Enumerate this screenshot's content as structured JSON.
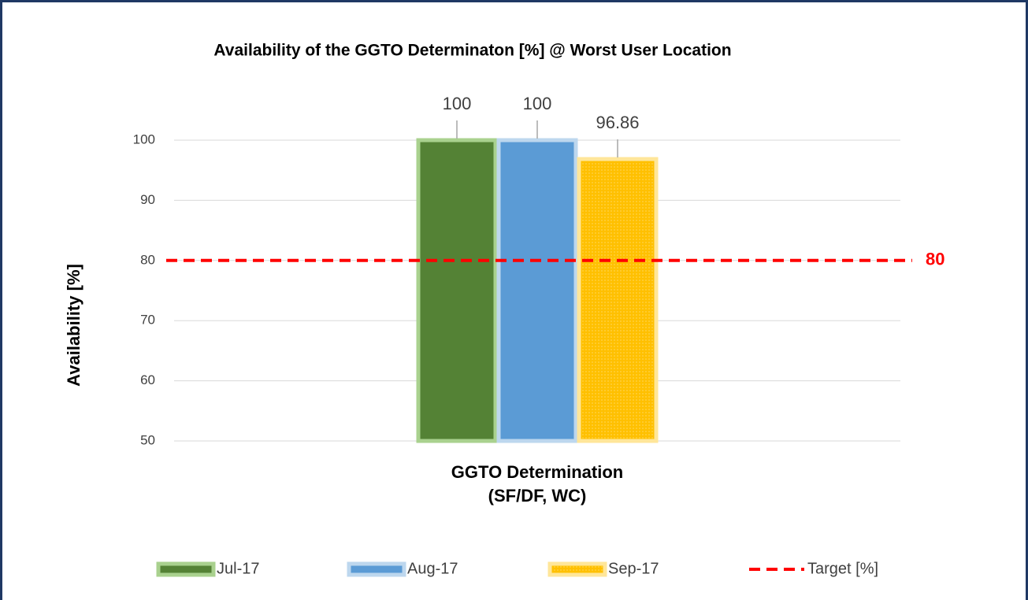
{
  "chart_data": {
    "type": "bar",
    "title": "Availability of the GGTO Determinaton [%]   @ Worst User Location",
    "y_label": "Availability [%]",
    "categories": [
      "GGTO Determination\n(SF/DF, WC)"
    ],
    "series": [
      {
        "name": "Jul-17",
        "color": "#548235",
        "border": "#a9d18e",
        "values": [
          100
        ]
      },
      {
        "name": "Aug-17",
        "color": "#5b9bd5",
        "border": "#bdd7ee",
        "values": [
          100
        ]
      },
      {
        "name": "Sep-17",
        "color": "#ffc000",
        "border": "#ffe699",
        "values": [
          96.86
        ]
      },
      {
        "name": "Target [%]",
        "color": "#ff0000",
        "type": "line",
        "dashed": true,
        "values": [
          80
        ]
      }
    ],
    "ylim": [
      50,
      100
    ],
    "yticks": [
      50,
      60,
      70,
      80,
      90,
      100
    ],
    "grid": true,
    "legend": "bottom"
  }
}
